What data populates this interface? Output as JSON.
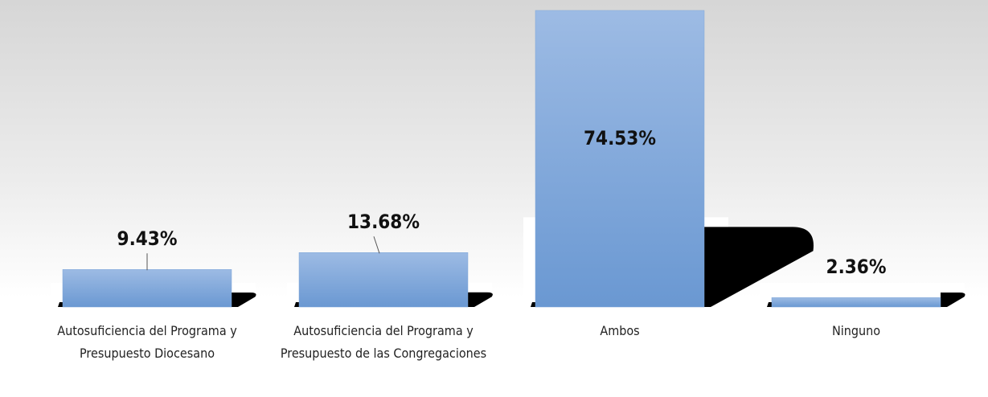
{
  "chart_data": {
    "type": "bar",
    "categories": [
      "Autosuficiencia del Programa y Presupuesto Diocesano",
      "Autosuficiencia del Programa y Presupuesto de las Congregaciones",
      "Ambos",
      "Ninguno"
    ],
    "values": [
      9.43,
      13.68,
      74.53,
      2.36
    ],
    "value_labels": [
      "9.43%",
      "13.68%",
      "74.53%",
      "2.36%"
    ],
    "color": "#7ea6d8"
  }
}
